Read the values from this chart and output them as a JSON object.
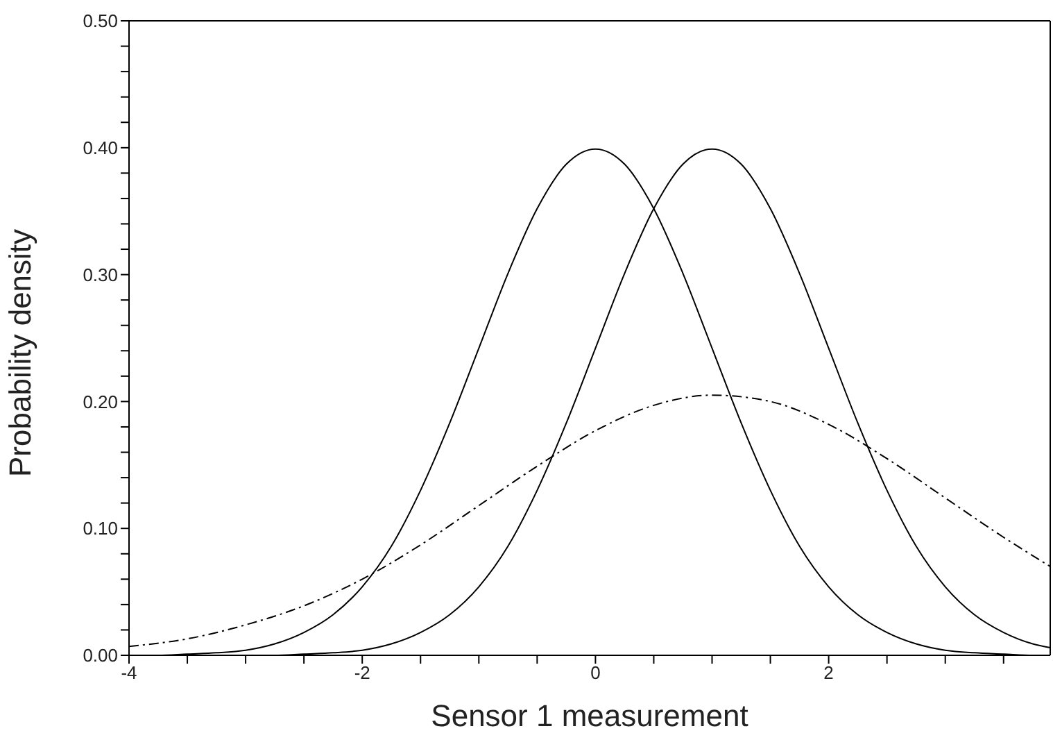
{
  "chart_data": {
    "type": "line",
    "xlabel": "Sensor 1 measurement",
    "ylabel": "Probability density",
    "x": [
      -4,
      -3.75,
      -3.5,
      -3.25,
      -3,
      -2.75,
      -2.5,
      -2.25,
      -2,
      -1.75,
      -1.5,
      -1.25,
      -1,
      -0.75,
      -0.5,
      -0.25,
      0,
      0.25,
      0.5,
      0.75,
      1,
      1.25,
      1.5,
      1.75,
      2,
      2.25,
      2.5,
      2.75,
      3,
      3.25,
      3.5,
      3.75,
      3.9
    ],
    "series": [
      {
        "color": "#000000",
        "line_style": "solid",
        "values": [
          0.0,
          0.0,
          0.001,
          0.002,
          0.004,
          0.009,
          0.018,
          0.032,
          0.054,
          0.086,
          0.13,
          0.183,
          0.242,
          0.301,
          0.352,
          0.387,
          0.399,
          0.387,
          0.352,
          0.301,
          0.242,
          0.183,
          0.13,
          0.086,
          0.054,
          0.032,
          0.018,
          0.009,
          0.004,
          0.002,
          0.001,
          0.0,
          0.0
        ]
      },
      {
        "color": "#000000",
        "line_style": "solid",
        "values": [
          0.0,
          0.0,
          0.0,
          0.0,
          0.0,
          0.0,
          0.001,
          0.002,
          0.004,
          0.009,
          0.018,
          0.032,
          0.054,
          0.086,
          0.13,
          0.183,
          0.242,
          0.301,
          0.352,
          0.387,
          0.399,
          0.387,
          0.352,
          0.301,
          0.242,
          0.183,
          0.13,
          0.086,
          0.054,
          0.032,
          0.018,
          0.009,
          0.006
        ]
      },
      {
        "color": "#000000",
        "line_style": "dashed",
        "x": [
          -4,
          -3.5,
          -3,
          -2.5,
          -2,
          -1.5,
          -1,
          -0.5,
          0,
          0.5,
          1,
          1.5,
          2,
          2.5,
          3,
          3.5,
          3.9
        ],
        "values": [
          0.007,
          0.013,
          0.024,
          0.039,
          0.06,
          0.087,
          0.118,
          0.149,
          0.177,
          0.197,
          0.205,
          0.2,
          0.182,
          0.155,
          0.124,
          0.093,
          0.07
        ]
      }
    ],
    "xlim": [
      -4,
      3.9
    ],
    "xticks": [
      -4,
      {
        "value": -3.5,
        "label": null
      },
      {
        "value": -3,
        "label": null
      },
      {
        "value": -2.5,
        "label": null
      },
      -2,
      {
        "value": -1.5,
        "label": null
      },
      {
        "value": -1,
        "label": null
      },
      {
        "value": -0.5,
        "label": null
      },
      0,
      {
        "value": 0.5,
        "label": null
      },
      {
        "value": 1,
        "label": null
      },
      {
        "value": 1.5,
        "label": null
      },
      2,
      {
        "value": 2.5,
        "label": null
      },
      {
        "value": 3,
        "label": null
      },
      {
        "value": 3.5,
        "label": null
      }
    ],
    "ylim": [
      0,
      0.5
    ],
    "yticks": [
      {
        "value": 0,
        "label": "0.00"
      },
      {
        "value": 0.02,
        "label": null
      },
      {
        "value": 0.04,
        "label": null
      },
      {
        "value": 0.06,
        "label": null
      },
      {
        "value": 0.08,
        "label": null
      },
      {
        "value": 0.1,
        "label": "0.10"
      },
      {
        "value": 0.12,
        "label": null
      },
      {
        "value": 0.14,
        "label": null
      },
      {
        "value": 0.16,
        "label": null
      },
      {
        "value": 0.18,
        "label": null
      },
      {
        "value": 0.2,
        "label": "0.20"
      },
      {
        "value": 0.22,
        "label": null
      },
      {
        "value": 0.24,
        "label": null
      },
      {
        "value": 0.26,
        "label": null
      },
      {
        "value": 0.28,
        "label": null
      },
      {
        "value": 0.3,
        "label": "0.30"
      },
      {
        "value": 0.32,
        "label": null
      },
      {
        "value": 0.34,
        "label": null
      },
      {
        "value": 0.36,
        "label": null
      },
      {
        "value": 0.38,
        "label": null
      },
      {
        "value": 0.4,
        "label": "0.40"
      },
      {
        "value": 0.42,
        "label": null
      },
      {
        "value": 0.44,
        "label": null
      },
      {
        "value": 0.46,
        "label": null
      },
      {
        "value": 0.48,
        "label": null
      },
      {
        "value": 0.5,
        "label": "0.50"
      }
    ],
    "grid": false,
    "legend": false,
    "marker": "none"
  }
}
